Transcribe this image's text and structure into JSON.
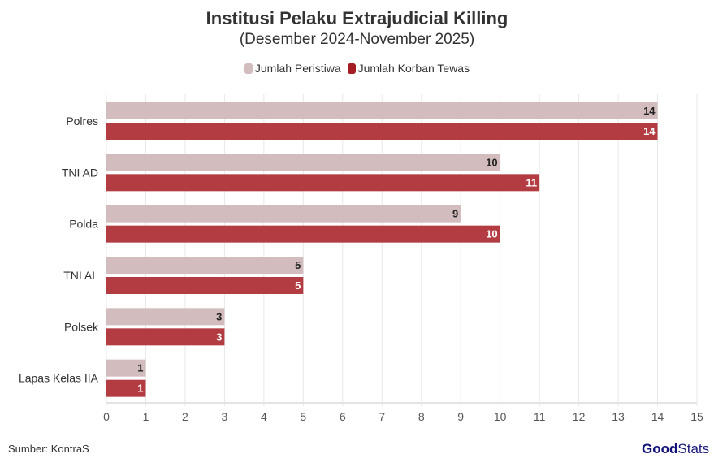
{
  "chart_data": {
    "type": "bar",
    "orientation": "horizontal",
    "title": "Institusi Pelaku Extrajudicial Killing",
    "subtitle": "(Desember 2024-November 2025)",
    "categories": [
      "Polres",
      "TNI AD",
      "Polda",
      "TNI AL",
      "Polsek",
      "Lapas Kelas IIA"
    ],
    "series": [
      {
        "name": "Jumlah Peristiwa",
        "color": "#d3bcbd",
        "label_color": "#222222",
        "values": [
          14,
          10,
          9,
          5,
          3,
          1
        ]
      },
      {
        "name": "Jumlah Korban Tewas",
        "color": "#b33c42",
        "label_color": "#ffffff",
        "values": [
          14,
          11,
          10,
          5,
          3,
          1
        ]
      }
    ],
    "xlim": [
      0,
      15
    ],
    "xticks": [
      "0",
      "1",
      "2",
      "3",
      "4",
      "5",
      "6",
      "7",
      "8",
      "9",
      "10",
      "11",
      "12",
      "13",
      "14",
      "15"
    ],
    "grid": true,
    "legend_position": "top"
  },
  "legend_swatches": [
    "#d3bcbd",
    "#a51c24"
  ],
  "source": "Sumber: KontraS",
  "logo": {
    "part1": "Good",
    "part2": "Stats"
  }
}
